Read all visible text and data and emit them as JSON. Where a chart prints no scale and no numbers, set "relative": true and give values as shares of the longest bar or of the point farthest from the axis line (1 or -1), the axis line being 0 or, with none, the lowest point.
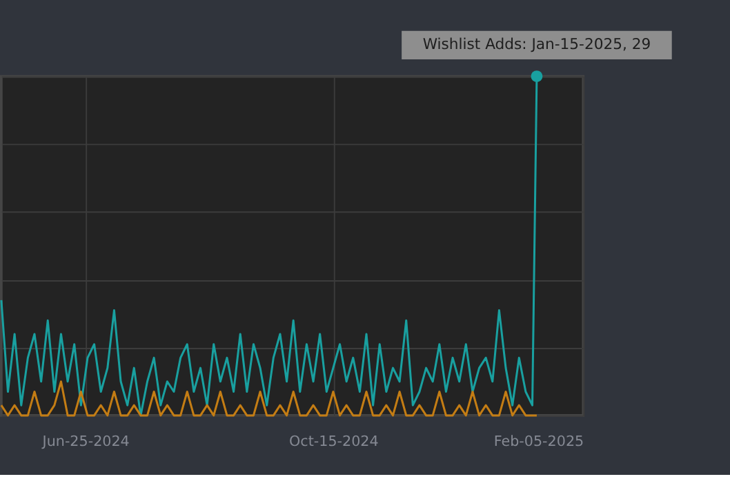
{
  "chart_data": {
    "type": "line",
    "x": [
      "2024-05-18",
      "2024-05-21",
      "2024-05-24",
      "2024-05-27",
      "2024-05-30",
      "2024-06-02",
      "2024-06-05",
      "2024-06-08",
      "2024-06-11",
      "2024-06-14",
      "2024-06-17",
      "2024-06-20",
      "2024-06-23",
      "2024-06-26",
      "2024-06-29",
      "2024-07-02",
      "2024-07-05",
      "2024-07-08",
      "2024-07-11",
      "2024-07-14",
      "2024-07-17",
      "2024-07-20",
      "2024-07-23",
      "2024-07-26",
      "2024-07-29",
      "2024-08-01",
      "2024-08-04",
      "2024-08-07",
      "2024-08-10",
      "2024-08-13",
      "2024-08-16",
      "2024-08-19",
      "2024-08-22",
      "2024-08-25",
      "2024-08-28",
      "2024-08-31",
      "2024-09-03",
      "2024-09-06",
      "2024-09-09",
      "2024-09-12",
      "2024-09-15",
      "2024-09-18",
      "2024-09-21",
      "2024-09-24",
      "2024-09-27",
      "2024-09-30",
      "2024-10-03",
      "2024-10-06",
      "2024-10-09",
      "2024-10-12",
      "2024-10-15",
      "2024-10-18",
      "2024-10-21",
      "2024-10-24",
      "2024-10-27",
      "2024-10-30",
      "2024-11-02",
      "2024-11-05",
      "2024-11-08",
      "2024-11-11",
      "2024-11-14",
      "2024-11-17",
      "2024-11-20",
      "2024-11-23",
      "2024-11-26",
      "2024-11-29",
      "2024-12-02",
      "2024-12-05",
      "2024-12-08",
      "2024-12-11",
      "2024-12-14",
      "2024-12-17",
      "2024-12-20",
      "2024-12-23",
      "2024-12-26",
      "2024-12-29",
      "2025-01-01",
      "2025-01-04",
      "2025-01-07",
      "2025-01-10",
      "2025-01-13",
      "2025-01-15"
    ],
    "series": [
      {
        "color": "#19a0a0",
        "values": [
          0.34,
          0.07,
          0.24,
          0.03,
          0.17,
          0.24,
          0.1,
          0.28,
          0.07,
          0.24,
          0.1,
          0.21,
          0.03,
          0.17,
          0.21,
          0.07,
          0.14,
          0.31,
          0.1,
          0.03,
          0.14,
          0,
          0.1,
          0.17,
          0.03,
          0.1,
          0.07,
          0.17,
          0.21,
          0.07,
          0.14,
          0.03,
          0.21,
          0.1,
          0.17,
          0.07,
          0.24,
          0.07,
          0.21,
          0.14,
          0.03,
          0.17,
          0.24,
          0.1,
          0.28,
          0.07,
          0.21,
          0.1,
          0.24,
          0.07,
          0.14,
          0.21,
          0.1,
          0.17,
          0.07,
          0.24,
          0.03,
          0.21,
          0.07,
          0.14,
          0.1,
          0.28,
          0.03,
          0.07,
          0.14,
          0.1,
          0.21,
          0.07,
          0.17,
          0.1,
          0.21,
          0.07,
          0.14,
          0.17,
          0.1,
          0.31,
          0.14,
          0.03,
          0.17,
          0.07,
          0.03,
          1
        ]
      },
      {
        "color": "#c47d14",
        "values": [
          0.03,
          0,
          0.03,
          0,
          0,
          0.07,
          0,
          0,
          0.03,
          0.1,
          0,
          0,
          0.07,
          0,
          0,
          0.03,
          0,
          0.07,
          0,
          0,
          0.03,
          0,
          0,
          0.07,
          0,
          0.03,
          0,
          0,
          0.07,
          0,
          0,
          0.03,
          0,
          0.07,
          0,
          0,
          0.03,
          0,
          0,
          0.07,
          0,
          0,
          0.03,
          0,
          0.07,
          0,
          0,
          0.03,
          0,
          0,
          0.07,
          0,
          0.03,
          0,
          0,
          0.07,
          0,
          0,
          0.03,
          0,
          0.07,
          0,
          0,
          0.03,
          0,
          0,
          0.07,
          0,
          0,
          0.03,
          0,
          0.07,
          0,
          0.03,
          0,
          0,
          0.07,
          0,
          0.03,
          0,
          0,
          0
        ]
      }
    ],
    "relative": true,
    "xlim": [
      "2024-05-18",
      "2025-02-05"
    ],
    "xticks": [
      {
        "value": "2024-06-25",
        "label": "Jun-25-2024"
      },
      {
        "value": "2024-10-15",
        "label": "Oct-15-2024"
      },
      {
        "value": "2025-02-05",
        "label": "Feb-05-2025"
      }
    ],
    "tick_labels": "x",
    "grid": true,
    "marker": "none",
    "line_style": "solid",
    "annotations": [
      {
        "text": "Wishlist Adds: Jan-15-2025, 29",
        "x": "2025-01-15",
        "y": 1
      }
    ]
  }
}
